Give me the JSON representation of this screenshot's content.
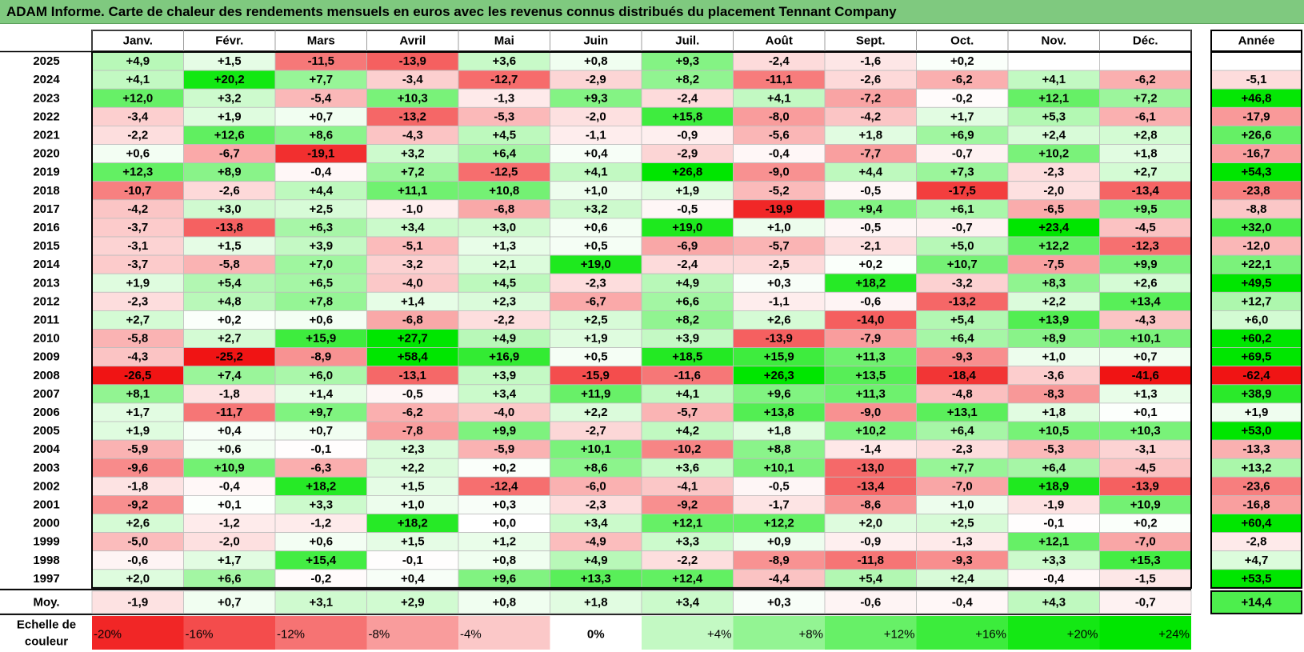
{
  "title": "ADAM Informe. Carte de chaleur des rendements mensuels en euros avec les revenus connus distribués du placement Tennant Company",
  "chart_data": {
    "type": "heatmap",
    "columns": [
      "Janv.",
      "Févr.",
      "Mars",
      "Avril",
      "Mai",
      "Juin",
      "Juil.",
      "Août",
      "Sept.",
      "Oct.",
      "Nov.",
      "Déc."
    ],
    "year_header": "Année",
    "rows": [
      {
        "year": "2025",
        "values": [
          "+4,9",
          "+1,5",
          "-11,5",
          "-13,9",
          "+3,6",
          "+0,8",
          "+9,3",
          "-2,4",
          "-1,6",
          "+0,2",
          "",
          ""
        ],
        "annual": ""
      },
      {
        "year": "2024",
        "values": [
          "+4,1",
          "+20,2",
          "+7,7",
          "-3,4",
          "-12,7",
          "-2,9",
          "+8,2",
          "-11,1",
          "-2,6",
          "-6,2",
          "+4,1",
          "-6,2"
        ],
        "annual": "-5,1"
      },
      {
        "year": "2023",
        "values": [
          "+12,0",
          "+3,2",
          "-5,4",
          "+10,3",
          "-1,3",
          "+9,3",
          "-2,4",
          "+4,1",
          "-7,2",
          "-0,2",
          "+12,1",
          "+7,2"
        ],
        "annual": "+46,8"
      },
      {
        "year": "2022",
        "values": [
          "-3,4",
          "+1,9",
          "+0,7",
          "-13,2",
          "-5,3",
          "-2,0",
          "+15,8",
          "-8,0",
          "-4,2",
          "+1,7",
          "+5,3",
          "-6,1"
        ],
        "annual": "-17,9"
      },
      {
        "year": "2021",
        "values": [
          "-2,2",
          "+12,6",
          "+8,6",
          "-4,3",
          "+4,5",
          "-1,1",
          "-0,9",
          "-5,6",
          "+1,8",
          "+6,9",
          "+2,4",
          "+2,8"
        ],
        "annual": "+26,6"
      },
      {
        "year": "2020",
        "values": [
          "+0,6",
          "-6,7",
          "-19,1",
          "+3,2",
          "+6,4",
          "+0,4",
          "-2,9",
          "-0,4",
          "-7,7",
          "-0,7",
          "+10,2",
          "+1,8"
        ],
        "annual": "-16,7"
      },
      {
        "year": "2019",
        "values": [
          "+12,3",
          "+8,9",
          "-0,4",
          "+7,2",
          "-12,5",
          "+4,1",
          "+26,8",
          "-9,0",
          "+4,4",
          "+7,3",
          "-2,3",
          "+2,7"
        ],
        "annual": "+54,3"
      },
      {
        "year": "2018",
        "values": [
          "-10,7",
          "-2,6",
          "+4,4",
          "+11,1",
          "+10,8",
          "+1,0",
          "+1,9",
          "-5,2",
          "-0,5",
          "-17,5",
          "-2,0",
          "-13,4"
        ],
        "annual": "-23,8"
      },
      {
        "year": "2017",
        "values": [
          "-4,2",
          "+3,0",
          "+2,5",
          "-1,0",
          "-6,8",
          "+3,2",
          "-0,5",
          "-19,9",
          "+9,4",
          "+6,1",
          "-6,5",
          "+9,5"
        ],
        "annual": "-8,8"
      },
      {
        "year": "2016",
        "values": [
          "-3,7",
          "-13,8",
          "+6,3",
          "+3,4",
          "+3,0",
          "+0,6",
          "+19,0",
          "+1,0",
          "-0,5",
          "-0,7",
          "+23,4",
          "-4,5"
        ],
        "annual": "+32,0"
      },
      {
        "year": "2015",
        "values": [
          "-3,1",
          "+1,5",
          "+3,9",
          "-5,1",
          "+1,3",
          "+0,5",
          "-6,9",
          "-5,7",
          "-2,1",
          "+5,0",
          "+12,2",
          "-12,3"
        ],
        "annual": "-12,0"
      },
      {
        "year": "2014",
        "values": [
          "-3,7",
          "-5,8",
          "+7,0",
          "-3,2",
          "+2,1",
          "+19,0",
          "-2,4",
          "-2,5",
          "+0,2",
          "+10,7",
          "-7,5",
          "+9,9"
        ],
        "annual": "+22,1"
      },
      {
        "year": "2013",
        "values": [
          "+1,9",
          "+5,4",
          "+6,5",
          "-4,0",
          "+4,5",
          "-2,3",
          "+4,9",
          "+0,3",
          "+18,2",
          "-3,2",
          "+8,3",
          "+2,6"
        ],
        "annual": "+49,5"
      },
      {
        "year": "2012",
        "values": [
          "-2,3",
          "+4,8",
          "+7,8",
          "+1,4",
          "+2,3",
          "-6,7",
          "+6,6",
          "-1,1",
          "-0,6",
          "-13,2",
          "+2,2",
          "+13,4"
        ],
        "annual": "+12,7"
      },
      {
        "year": "2011",
        "values": [
          "+2,7",
          "+0,2",
          "+0,6",
          "-6,8",
          "-2,2",
          "+2,5",
          "+8,2",
          "+2,6",
          "-14,0",
          "+5,4",
          "+13,9",
          "-4,3"
        ],
        "annual": "+6,0"
      },
      {
        "year": "2010",
        "values": [
          "-5,8",
          "+2,7",
          "+15,9",
          "+27,7",
          "+4,9",
          "+1,9",
          "+3,9",
          "-13,9",
          "-7,9",
          "+6,4",
          "+8,9",
          "+10,1"
        ],
        "annual": "+60,2"
      },
      {
        "year": "2009",
        "values": [
          "-4,3",
          "-25,2",
          "-8,9",
          "+58,4",
          "+16,9",
          "+0,5",
          "+18,5",
          "+15,9",
          "+11,3",
          "-9,3",
          "+1,0",
          "+0,7"
        ],
        "annual": "+69,5"
      },
      {
        "year": "2008",
        "values": [
          "-26,5",
          "+7,4",
          "+6,0",
          "-13,1",
          "+3,9",
          "-15,9",
          "-11,6",
          "+26,3",
          "+13,5",
          "-18,4",
          "-3,6",
          "-41,6"
        ],
        "annual": "-62,4"
      },
      {
        "year": "2007",
        "values": [
          "+8,1",
          "-1,8",
          "+1,4",
          "-0,5",
          "+3,4",
          "+11,9",
          "+4,1",
          "+9,6",
          "+11,3",
          "-4,8",
          "-8,3",
          "+1,3"
        ],
        "annual": "+38,9"
      },
      {
        "year": "2006",
        "values": [
          "+1,7",
          "-11,7",
          "+9,7",
          "-6,2",
          "-4,0",
          "+2,2",
          "-5,7",
          "+13,8",
          "-9,0",
          "+13,1",
          "+1,8",
          "+0,1"
        ],
        "annual": "+1,9"
      },
      {
        "year": "2005",
        "values": [
          "+1,9",
          "+0,4",
          "+0,7",
          "-7,8",
          "+9,9",
          "-2,7",
          "+4,2",
          "+1,8",
          "+10,2",
          "+6,4",
          "+10,5",
          "+10,3"
        ],
        "annual": "+53,0"
      },
      {
        "year": "2004",
        "values": [
          "-5,9",
          "+0,6",
          "-0,1",
          "+2,3",
          "-5,9",
          "+10,1",
          "-10,2",
          "+8,8",
          "-1,4",
          "-2,3",
          "-5,3",
          "-3,1"
        ],
        "annual": "-13,3"
      },
      {
        "year": "2003",
        "values": [
          "-9,6",
          "+10,9",
          "-6,3",
          "+2,2",
          "+0,2",
          "+8,6",
          "+3,6",
          "+10,1",
          "-13,0",
          "+7,7",
          "+6,4",
          "-4,5"
        ],
        "annual": "+13,2"
      },
      {
        "year": "2002",
        "values": [
          "-1,8",
          "-0,4",
          "+18,2",
          "+1,5",
          "-12,4",
          "-6,0",
          "-4,1",
          "-0,5",
          "-13,4",
          "-7,0",
          "+18,9",
          "-13,9"
        ],
        "annual": "-23,6"
      },
      {
        "year": "2001",
        "values": [
          "-9,2",
          "+0,1",
          "+3,3",
          "+1,0",
          "+0,3",
          "-2,3",
          "-9,2",
          "-1,7",
          "-8,6",
          "+1,0",
          "-1,9",
          "+10,9"
        ],
        "annual": "-16,8"
      },
      {
        "year": "2000",
        "values": [
          "+2,6",
          "-1,2",
          "-1,2",
          "+18,2",
          "+0,0",
          "+3,4",
          "+12,1",
          "+12,2",
          "+2,0",
          "+2,5",
          "-0,1",
          "+0,2"
        ],
        "annual": "+60,4"
      },
      {
        "year": "1999",
        "values": [
          "-5,0",
          "-2,0",
          "+0,6",
          "+1,5",
          "+1,2",
          "-4,9",
          "+3,3",
          "+0,9",
          "-0,9",
          "-1,3",
          "+12,1",
          "-7,0"
        ],
        "annual": "-2,8"
      },
      {
        "year": "1998",
        "values": [
          "-0,6",
          "+1,7",
          "+15,4",
          "-0,1",
          "+0,8",
          "+4,9",
          "-2,2",
          "-8,9",
          "-11,8",
          "-9,3",
          "+3,3",
          "+15,3"
        ],
        "annual": "+4,7"
      },
      {
        "year": "1997",
        "values": [
          "+2,0",
          "+6,6",
          "-0,2",
          "+0,4",
          "+9,6",
          "+13,3",
          "+12,4",
          "-4,4",
          "+5,4",
          "+2,4",
          "-0,4",
          "-1,5"
        ],
        "annual": "+53,5"
      }
    ],
    "average": {
      "label": "Moy.",
      "values": [
        "-1,9",
        "+0,7",
        "+3,1",
        "+2,9",
        "+0,8",
        "+1,8",
        "+3,4",
        "+0,3",
        "-0,6",
        "-0,4",
        "+4,3",
        "-0,7"
      ],
      "annual": "+14,4"
    },
    "scale": {
      "label_line1": "Echelle de",
      "label_line2": "couleur",
      "steps": [
        "-20%",
        "-16%",
        "-12%",
        "-8%",
        "-4%",
        "0%",
        "+4%",
        "+8%",
        "+12%",
        "+16%",
        "+20%",
        "+24%"
      ]
    }
  }
}
